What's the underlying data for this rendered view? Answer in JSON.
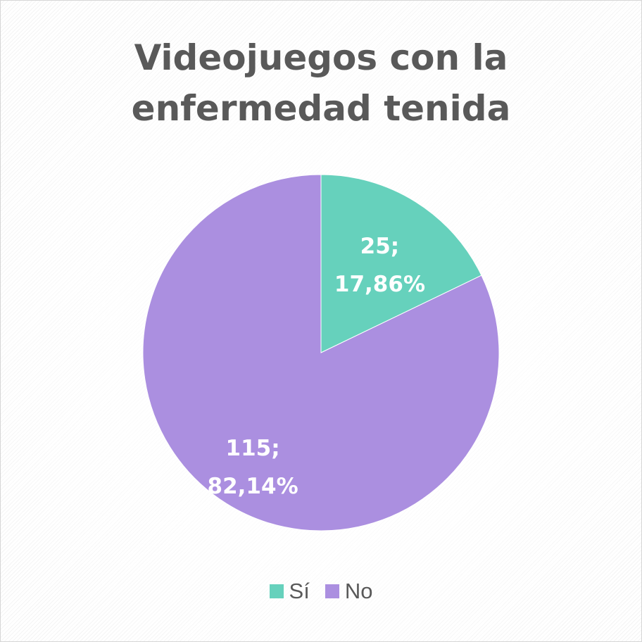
{
  "chart_data": {
    "type": "pie",
    "title_lines": [
      "Videojuegos con la",
      "enfermedad tenida"
    ],
    "categories": [
      "Sí",
      "No"
    ],
    "values": [
      25,
      115
    ],
    "percent_labels": [
      "17,86%",
      "82,14%"
    ],
    "value_labels": [
      "25;",
      "115;"
    ],
    "colors": [
      "#66d1bc",
      "#ab8fe0"
    ],
    "legend_position": "bottom",
    "start_angle": "12 o'clock, clockwise"
  }
}
